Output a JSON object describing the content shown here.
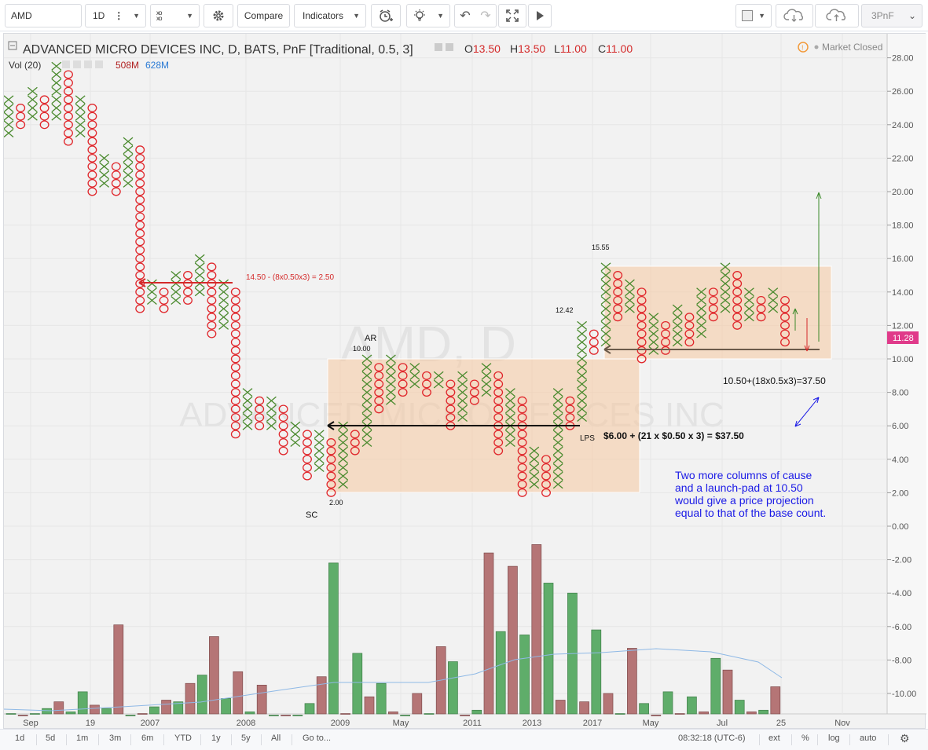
{
  "toolbar": {
    "symbol": "AMD",
    "interval": "1D",
    "compare_label": "Compare",
    "indicators_label": "Indicators",
    "chart_style_label": "3PnF"
  },
  "legend": {
    "title": "ADVANCED MICRO DEVICES INC, D, BATS, PnF [Traditional, 0.5, 3]",
    "o_label": "O",
    "o_value": "13.50",
    "h_label": "H",
    "h_value": "13.50",
    "l_label": "L",
    "l_value": "11.00",
    "c_label": "C",
    "c_value": "11.00",
    "vol_label": "Vol (20)",
    "vol_value_1": "508M",
    "vol_value_2": "628M",
    "market_status": "Market Closed",
    "watermark_symbol": "AMD, D",
    "watermark_name": "ADVANCED MICRO DEVICES INC"
  },
  "annotations": {
    "red_count": "14.50 - (8x0.50x3) = 2.50",
    "ar": "AR",
    "ar_price": "10.00",
    "sc": "SC",
    "sc_price": "2.00",
    "lps": "LPS",
    "p1242": "12.42",
    "p1555": "15.55",
    "base_count": "$6.00 + (21 x $0.50 x 3) = $37.50",
    "new_count": "10.50+(18x0.5x3)=37.50",
    "note_lines": [
      "Two more columns of cause",
      "and a launch-pad at 10.50",
      "would give a price projection",
      "equal to that of the base count."
    ]
  },
  "price_axis": {
    "ticks": [
      "28.00",
      "26.00",
      "24.00",
      "22.00",
      "20.00",
      "18.00",
      "16.00",
      "14.00",
      "12.00",
      "10.00",
      "8.00",
      "6.00",
      "4.00",
      "2.00",
      "0.00",
      "-2.00",
      "-4.00",
      "-6.00",
      "-8.00",
      "-10.00"
    ],
    "last_price": "11.28"
  },
  "time_axis": {
    "labels": [
      "Sep",
      "19",
      "2007",
      "2008",
      "2009",
      "May",
      "2011",
      "2013",
      "2017",
      "May",
      "Jul",
      "25",
      "Nov"
    ]
  },
  "bottom_bar": {
    "ranges": [
      "1d",
      "5d",
      "1m",
      "3m",
      "6m",
      "YTD",
      "1y",
      "5y",
      "All"
    ],
    "goto": "Go to...",
    "clock": "08:32:18 (UTC-6)",
    "ext": "ext",
    "pct": "%",
    "log": "log",
    "auto": "auto"
  },
  "colors": {
    "x_col": "#4a8a2e",
    "o_col": "#e0262b",
    "vol_up": "#5fad6a",
    "vol_down": "#b57576",
    "box_fill": "#f5c9a0",
    "note_blue": "#1a1ae6",
    "price_tag": "#e03a8a"
  },
  "chart_data": {
    "type": "point-and-figure",
    "box_size": 0.5,
    "reversal": 3,
    "ylim": [
      -11,
      29
    ],
    "columns": [
      {
        "type": "X",
        "low": 23.5,
        "high": 25.5
      },
      {
        "type": "O",
        "low": 24,
        "high": 25
      },
      {
        "type": "X",
        "low": 24.5,
        "high": 26
      },
      {
        "type": "O",
        "low": 24,
        "high": 25.5
      },
      {
        "type": "X",
        "low": 24.5,
        "high": 27.5
      },
      {
        "type": "O",
        "low": 23,
        "high": 27
      },
      {
        "type": "X",
        "low": 23.5,
        "high": 25.5
      },
      {
        "type": "O",
        "low": 20,
        "high": 25
      },
      {
        "type": "X",
        "low": 20.5,
        "high": 22
      },
      {
        "type": "O",
        "low": 20,
        "high": 21.5
      },
      {
        "type": "X",
        "low": 20.5,
        "high": 23
      },
      {
        "type": "O",
        "low": 13,
        "high": 22.5
      },
      {
        "type": "X",
        "low": 13.5,
        "high": 14.5
      },
      {
        "type": "O",
        "low": 13,
        "high": 14
      },
      {
        "type": "X",
        "low": 13.5,
        "high": 15
      },
      {
        "type": "O",
        "low": 13.5,
        "high": 15
      },
      {
        "type": "X",
        "low": 14,
        "high": 16
      },
      {
        "type": "O",
        "low": 11.5,
        "high": 15.5
      },
      {
        "type": "X",
        "low": 12,
        "high": 14.5
      },
      {
        "type": "O",
        "low": 5.5,
        "high": 14
      },
      {
        "type": "X",
        "low": 6,
        "high": 8
      },
      {
        "type": "O",
        "low": 6,
        "high": 7.5
      },
      {
        "type": "X",
        "low": 6,
        "high": 7.5
      },
      {
        "type": "O",
        "low": 4.5,
        "high": 7
      },
      {
        "type": "X",
        "low": 5,
        "high": 6
      },
      {
        "type": "O",
        "low": 3,
        "high": 5.5
      },
      {
        "type": "X",
        "low": 3.5,
        "high": 5.5
      },
      {
        "type": "O",
        "low": 2,
        "high": 5
      },
      {
        "type": "X",
        "low": 2.5,
        "high": 6
      },
      {
        "type": "O",
        "low": 4.5,
        "high": 5.5
      },
      {
        "type": "X",
        "low": 5,
        "high": 10
      },
      {
        "type": "O",
        "low": 7,
        "high": 9.5
      },
      {
        "type": "X",
        "low": 7.5,
        "high": 10
      },
      {
        "type": "O",
        "low": 8,
        "high": 9.5
      },
      {
        "type": "X",
        "low": 8.5,
        "high": 9.5
      },
      {
        "type": "O",
        "low": 8,
        "high": 9
      },
      {
        "type": "X",
        "low": 8.5,
        "high": 9
      },
      {
        "type": "O",
        "low": 6,
        "high": 8.5
      },
      {
        "type": "X",
        "low": 6.5,
        "high": 9
      },
      {
        "type": "O",
        "low": 7.5,
        "high": 8.5
      },
      {
        "type": "X",
        "low": 8,
        "high": 9.5
      },
      {
        "type": "O",
        "low": 4.5,
        "high": 9
      },
      {
        "type": "X",
        "low": 5,
        "high": 8
      },
      {
        "type": "O",
        "low": 2,
        "high": 7.5
      },
      {
        "type": "X",
        "low": 2.5,
        "high": 4.5
      },
      {
        "type": "O",
        "low": 2,
        "high": 4
      },
      {
        "type": "X",
        "low": 2.5,
        "high": 8
      },
      {
        "type": "O",
        "low": 6,
        "high": 7.5
      },
      {
        "type": "X",
        "low": 6.5,
        "high": 12
      },
      {
        "type": "O",
        "low": 10.5,
        "high": 11.5
      },
      {
        "type": "X",
        "low": 11,
        "high": 15.5
      },
      {
        "type": "O",
        "low": 12.5,
        "high": 15
      },
      {
        "type": "X",
        "low": 13,
        "high": 14.5
      },
      {
        "type": "O",
        "low": 10,
        "high": 14
      },
      {
        "type": "X",
        "low": 10.5,
        "high": 12.5
      },
      {
        "type": "O",
        "low": 10.5,
        "high": 12
      },
      {
        "type": "X",
        "low": 11,
        "high": 13
      },
      {
        "type": "O",
        "low": 11,
        "high": 12.5
      },
      {
        "type": "X",
        "low": 11.5,
        "high": 14
      },
      {
        "type": "O",
        "low": 12.5,
        "high": 14
      },
      {
        "type": "X",
        "low": 13,
        "high": 15.5
      },
      {
        "type": "O",
        "low": 12,
        "high": 15
      },
      {
        "type": "X",
        "low": 12.5,
        "high": 14
      },
      {
        "type": "O",
        "low": 12.5,
        "high": 13.5
      },
      {
        "type": "X",
        "low": 13,
        "high": 14
      },
      {
        "type": "O",
        "low": 11,
        "high": 13.5
      }
    ],
    "volume": [
      {
        "v": -11.2,
        "up": true
      },
      {
        "v": -11.3,
        "up": false
      },
      {
        "v": -11.2,
        "up": true
      },
      {
        "v": -10.9,
        "up": true
      },
      {
        "v": -10.5,
        "up": false
      },
      {
        "v": -11.1,
        "up": true
      },
      {
        "v": -9.9,
        "up": true
      },
      {
        "v": -10.7,
        "up": false
      },
      {
        "v": -10.9,
        "up": true
      },
      {
        "v": -5.9,
        "up": false
      },
      {
        "v": -11.3,
        "up": true
      },
      {
        "v": -11.2,
        "up": false
      },
      {
        "v": -10.8,
        "up": true
      },
      {
        "v": -10.4,
        "up": false
      },
      {
        "v": -10.5,
        "up": true
      },
      {
        "v": -9.4,
        "up": false
      },
      {
        "v": -8.9,
        "up": true
      },
      {
        "v": -6.6,
        "up": false
      },
      {
        "v": -10.3,
        "up": true
      },
      {
        "v": -8.7,
        "up": false
      },
      {
        "v": -11.1,
        "up": true
      },
      {
        "v": -9.5,
        "up": false
      },
      {
        "v": -11.3,
        "up": true
      },
      {
        "v": -11.3,
        "up": false
      },
      {
        "v": -11.3,
        "up": true
      },
      {
        "v": -10.6,
        "up": true
      },
      {
        "v": -9.0,
        "up": false
      },
      {
        "v": -2.2,
        "up": true
      },
      {
        "v": -11.2,
        "up": false
      },
      {
        "v": -7.6,
        "up": true
      },
      {
        "v": -10.2,
        "up": false
      },
      {
        "v": -9.4,
        "up": true
      },
      {
        "v": -11.1,
        "up": false
      },
      {
        "v": -11.3,
        "up": true
      },
      {
        "v": -10.0,
        "up": false
      },
      {
        "v": -11.2,
        "up": true
      },
      {
        "v": -7.2,
        "up": false
      },
      {
        "v": -8.1,
        "up": true
      },
      {
        "v": -11.3,
        "up": false
      },
      {
        "v": -11.0,
        "up": true
      },
      {
        "v": -1.6,
        "up": false
      },
      {
        "v": -6.3,
        "up": true
      },
      {
        "v": -2.4,
        "up": false
      },
      {
        "v": -6.5,
        "up": true
      },
      {
        "v": -1.1,
        "up": false
      },
      {
        "v": -3.4,
        "up": true
      },
      {
        "v": -10.4,
        "up": false
      },
      {
        "v": -4.0,
        "up": true
      },
      {
        "v": -10.5,
        "up": false
      },
      {
        "v": -6.2,
        "up": true
      },
      {
        "v": -10.0,
        "up": false
      },
      {
        "v": -11.2,
        "up": true
      },
      {
        "v": -7.3,
        "up": false
      },
      {
        "v": -10.6,
        "up": true
      },
      {
        "v": -11.3,
        "up": false
      },
      {
        "v": -9.9,
        "up": true
      },
      {
        "v": -11.2,
        "up": false
      },
      {
        "v": -10.2,
        "up": true
      },
      {
        "v": -11.1,
        "up": false
      },
      {
        "v": -7.9,
        "up": true
      },
      {
        "v": -8.6,
        "up": false
      },
      {
        "v": -10.4,
        "up": true
      },
      {
        "v": -11.1,
        "up": false
      },
      {
        "v": -11.0,
        "up": true
      },
      {
        "v": -9.6,
        "up": false
      }
    ]
  }
}
